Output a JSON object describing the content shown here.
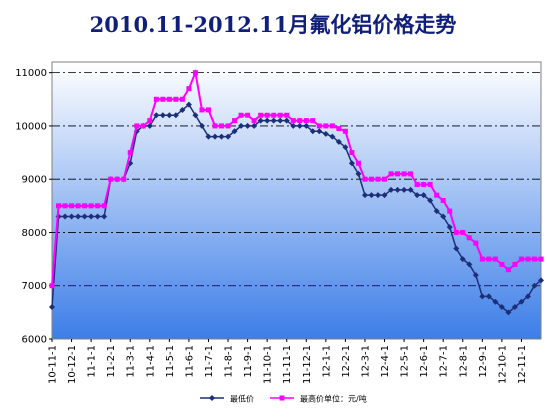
{
  "chart_data": {
    "type": "line",
    "title": "2010.11-2012.11月氟化铝价格走势",
    "categories": [
      "10-11-1",
      null,
      null,
      "10-12-1",
      null,
      null,
      "11-1-1",
      null,
      null,
      "11-2-1",
      null,
      null,
      "11-3-1",
      null,
      null,
      "11-4-1",
      null,
      null,
      "11-5-1",
      null,
      null,
      "11-6-1",
      null,
      null,
      "11-7-1",
      null,
      null,
      "11-8-1",
      null,
      null,
      "11-9-1",
      null,
      null,
      "11-10-1",
      null,
      null,
      "11-11-1",
      null,
      null,
      "11-12-1",
      null,
      null,
      "12-1-1",
      null,
      null,
      "12-2-1",
      null,
      null,
      "12-3-1",
      null,
      null,
      "12-4-1",
      null,
      null,
      "12-5-1",
      null,
      null,
      "12-6-1",
      null,
      null,
      "12-7-1",
      null,
      null,
      "12-8-1",
      null,
      null,
      "12-9-1",
      null,
      null,
      "12-10-1",
      null,
      null,
      "12-11-1",
      null,
      null,
      null
    ],
    "series": [
      {
        "name": "最低价",
        "color": "#1c2f78",
        "marker": "diamond",
        "values": [
          6600,
          8300,
          8300,
          8300,
          8300,
          8300,
          8300,
          8300,
          8300,
          9000,
          9000,
          9000,
          9300,
          9900,
          10000,
          10000,
          10200,
          10200,
          10200,
          10200,
          10300,
          10400,
          10200,
          10000,
          9800,
          9800,
          9800,
          9800,
          9900,
          10000,
          10000,
          10000,
          10100,
          10100,
          10100,
          10100,
          10100,
          10000,
          10000,
          10000,
          9900,
          9900,
          9850,
          9800,
          9700,
          9600,
          9300,
          9100,
          8700,
          8700,
          8700,
          8700,
          8800,
          8800,
          8800,
          8800,
          8700,
          8700,
          8600,
          8400,
          8300,
          8100,
          7700,
          7500,
          7400,
          7200,
          6800,
          6800,
          6700,
          6600,
          6500,
          6600,
          6700,
          6800,
          7000,
          7100
        ]
      },
      {
        "name": "最高价单位：元/吨",
        "color": "#ff00ff",
        "marker": "square",
        "values": [
          7000,
          8500,
          8500,
          8500,
          8500,
          8500,
          8500,
          8500,
          8500,
          9000,
          9000,
          9000,
          9500,
          10000,
          10000,
          10100,
          10500,
          10500,
          10500,
          10500,
          10500,
          10700,
          11000,
          10300,
          10300,
          10000,
          10000,
          10000,
          10100,
          10200,
          10200,
          10100,
          10200,
          10200,
          10200,
          10200,
          10200,
          10100,
          10100,
          10100,
          10100,
          10000,
          10000,
          10000,
          9950,
          9900,
          9500,
          9300,
          9000,
          9000,
          9000,
          9000,
          9100,
          9100,
          9100,
          9100,
          8900,
          8900,
          8900,
          8700,
          8600,
          8400,
          8000,
          8000,
          7900,
          7800,
          7500,
          7500,
          7500,
          7400,
          7300,
          7400,
          7500,
          7500,
          7500,
          7500
        ]
      }
    ],
    "ylim": [
      6000,
      11200
    ],
    "yticks": [
      6000,
      7000,
      8000,
      9000,
      10000,
      11000
    ],
    "grid": true
  }
}
